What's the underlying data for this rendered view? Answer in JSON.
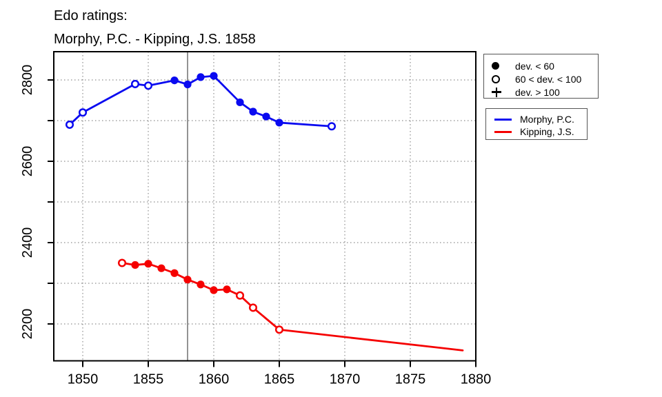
{
  "title": {
    "line1": "Edo ratings:",
    "line2": "Morphy, P.C. - Kipping, J.S. 1858"
  },
  "legend_markers": {
    "items": [
      {
        "symbol": "filled-circle",
        "label": "dev. < 60"
      },
      {
        "symbol": "open-circle",
        "label": "60 < dev. < 100"
      },
      {
        "symbol": "plus",
        "label": "dev. > 100"
      }
    ]
  },
  "legend_series": {
    "items": [
      {
        "color": "#0a0af0",
        "label": "Morphy, P.C."
      },
      {
        "color": "#f50000",
        "label": "Kipping, J.S."
      }
    ]
  },
  "colors": {
    "morphy": "#0a0af0",
    "kipping": "#f50000",
    "event_line": "#808080",
    "gridline": "#8c8c8c",
    "axis": "#000000"
  },
  "chart_data": {
    "type": "line",
    "title": "Edo ratings: Morphy, P.C. - Kipping, J.S. 1858",
    "xlabel": "",
    "ylabel": "",
    "grid": true,
    "xlim": [
      1847.8,
      1880
    ],
    "ylim": [
      2109,
      2870
    ],
    "x_ticks": [
      1850,
      1855,
      1860,
      1865,
      1870,
      1875,
      1880
    ],
    "y_tick_labels": [
      2200,
      2400,
      2600,
      2800
    ],
    "y_gridlines": [
      2200,
      2300,
      2400,
      2500,
      2600,
      2700,
      2800
    ],
    "event_line_year": 1858,
    "marker_meaning": {
      "filled": "dev. < 60",
      "open": "60 < dev. < 100",
      "plus": "dev. > 100"
    },
    "series": [
      {
        "name": "Morphy, P.C.",
        "color": "#0a0af0",
        "points": [
          {
            "year": 1849,
            "rating": 2690,
            "marker": "open"
          },
          {
            "year": 1850,
            "rating": 2720,
            "marker": "open"
          },
          {
            "year": 1854,
            "rating": 2790,
            "marker": "open"
          },
          {
            "year": 1855,
            "rating": 2786,
            "marker": "open"
          },
          {
            "year": 1857,
            "rating": 2799,
            "marker": "filled"
          },
          {
            "year": 1858,
            "rating": 2789,
            "marker": "filled"
          },
          {
            "year": 1859,
            "rating": 2807,
            "marker": "filled"
          },
          {
            "year": 1860,
            "rating": 2810,
            "marker": "filled"
          },
          {
            "year": 1862,
            "rating": 2745,
            "marker": "filled"
          },
          {
            "year": 1863,
            "rating": 2722,
            "marker": "filled"
          },
          {
            "year": 1864,
            "rating": 2710,
            "marker": "filled"
          },
          {
            "year": 1865,
            "rating": 2695,
            "marker": "filled"
          },
          {
            "year": 1869,
            "rating": 2686,
            "marker": "open"
          }
        ]
      },
      {
        "name": "Kipping, J.S.",
        "color": "#f50000",
        "points": [
          {
            "year": 1853,
            "rating": 2350,
            "marker": "open"
          },
          {
            "year": 1854,
            "rating": 2345,
            "marker": "filled"
          },
          {
            "year": 1855,
            "rating": 2348,
            "marker": "filled"
          },
          {
            "year": 1856,
            "rating": 2337,
            "marker": "filled"
          },
          {
            "year": 1857,
            "rating": 2325,
            "marker": "filled"
          },
          {
            "year": 1858,
            "rating": 2309,
            "marker": "filled"
          },
          {
            "year": 1859,
            "rating": 2297,
            "marker": "filled"
          },
          {
            "year": 1860,
            "rating": 2283,
            "marker": "filled"
          },
          {
            "year": 1861,
            "rating": 2285,
            "marker": "filled"
          },
          {
            "year": 1862,
            "rating": 2270,
            "marker": "open"
          },
          {
            "year": 1863,
            "rating": 2240,
            "marker": "open"
          },
          {
            "year": 1865,
            "rating": 2186,
            "marker": "open"
          },
          {
            "year": 1879,
            "rating": 2135,
            "marker": "none"
          }
        ]
      }
    ]
  }
}
